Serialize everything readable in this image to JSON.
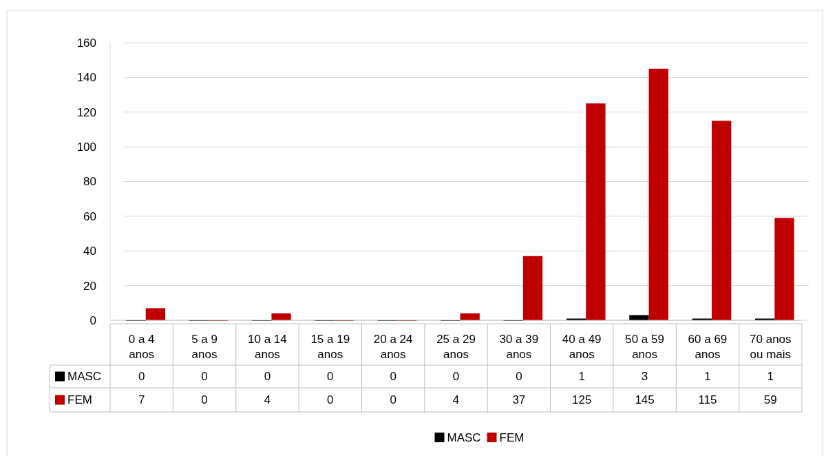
{
  "chart_data": {
    "type": "bar",
    "categories": [
      "0 a 4 anos",
      "5 a 9 anos",
      "10 a 14 anos",
      "15 a 19 anos",
      "20 a 24 anos",
      "25 a 29 anos",
      "30 a 39 anos",
      "40 a 49 anos",
      "50 a 59 anos",
      "60 a 69 anos",
      "70 anos ou mais"
    ],
    "series": [
      {
        "name": "MASC",
        "color": "#000000",
        "values": [
          0,
          0,
          0,
          0,
          0,
          0,
          0,
          1,
          3,
          1,
          1
        ]
      },
      {
        "name": "FEM",
        "color": "#c00000",
        "values": [
          7,
          0,
          4,
          0,
          0,
          4,
          37,
          125,
          145,
          115,
          59
        ]
      }
    ],
    "ylim": [
      0,
      160
    ],
    "yticks": [
      0,
      20,
      40,
      60,
      80,
      100,
      120,
      140,
      160
    ],
    "grid": true,
    "legend": "bottom",
    "data_labels": true
  }
}
